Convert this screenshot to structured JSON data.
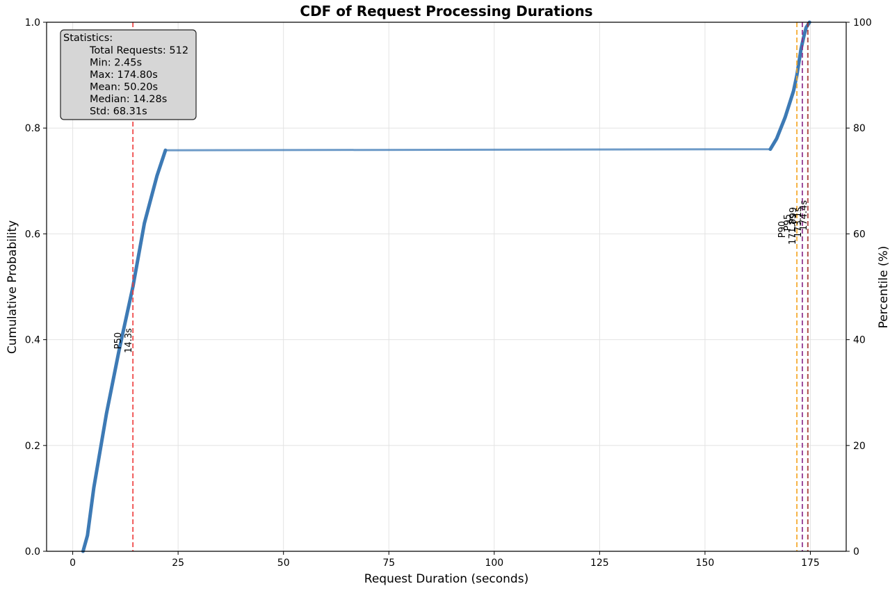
{
  "chart_data": {
    "type": "line",
    "title": "CDF of Request Processing Durations",
    "xlabel": "Request Duration (seconds)",
    "ylabel": "Cumulative Probability",
    "y2label": "Percentile (%)",
    "xlim": [
      -6.2,
      183.5
    ],
    "ylim": [
      0,
      1
    ],
    "y2lim": [
      0,
      100
    ],
    "xticks": [
      0,
      25,
      50,
      75,
      100,
      125,
      150,
      175
    ],
    "yticks": [
      0.0,
      0.2,
      0.4,
      0.6,
      0.8,
      1.0
    ],
    "ytick_labels": [
      "0.0",
      "0.2",
      "0.4",
      "0.6",
      "0.8",
      "1.0"
    ],
    "y2ticks": [
      0,
      20,
      40,
      60,
      80,
      100
    ],
    "grid": true,
    "series": [
      {
        "name": "",
        "color": "#3d7ab5",
        "x": [
          2.45,
          3.5,
          5.0,
          8.0,
          11.0,
          14.28,
          17.0,
          20.0,
          22.0,
          165.5,
          167.0,
          169.0,
          171.0,
          171.8,
          172.8,
          173.5,
          174.0,
          174.4,
          174.8
        ],
        "y": [
          0.0,
          0.03,
          0.12,
          0.26,
          0.38,
          0.5,
          0.62,
          0.71,
          0.758,
          0.76,
          0.78,
          0.82,
          0.87,
          0.9,
          0.95,
          0.975,
          0.99,
          0.995,
          1.0
        ]
      }
    ],
    "percentile_lines": [
      {
        "name": "P50",
        "value_label": "14.3s",
        "x": 14.28,
        "color": "#ee3b3b"
      },
      {
        "name": "P90",
        "value_label": "171.8s",
        "x": 171.8,
        "color": "#f5a623"
      },
      {
        "name": "P95",
        "value_label": "173.1s",
        "x": 173.1,
        "color": "#8b2a8b"
      },
      {
        "name": "P99",
        "value_label": "174.4s",
        "x": 174.4,
        "color": "#a0302a"
      }
    ],
    "statistics": {
      "heading": "Statistics:",
      "lines": [
        "Total Requests: 512",
        "Min: 2.45s",
        "Max: 174.80s",
        "Mean: 50.20s",
        "Median: 14.28s",
        "Std: 68.31s"
      ]
    }
  }
}
